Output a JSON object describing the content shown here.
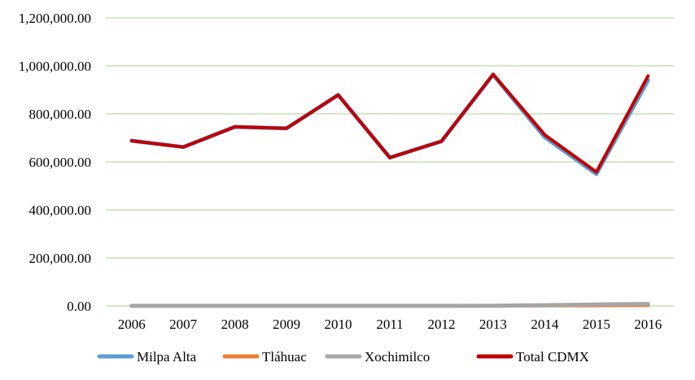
{
  "chart_data": {
    "type": "line",
    "title": "",
    "xlabel": "",
    "ylabel": "",
    "x": [
      "2006",
      "2007",
      "2008",
      "2009",
      "2010",
      "2011",
      "2012",
      "2013",
      "2014",
      "2015",
      "2016"
    ],
    "ylim": [
      0,
      1200000
    ],
    "y_ticks": [
      "0.00",
      "200,000.00",
      "400,000.00",
      "600,000.00",
      "800,000.00",
      "1,000,000.00",
      "1,200,000.00"
    ],
    "y_tick_values": [
      0,
      200000,
      400000,
      600000,
      800000,
      1000000,
      1200000
    ],
    "grid": true,
    "legend_position": "bottom",
    "series": [
      {
        "name": "Milpa Alta",
        "color": "#5B9BD5",
        "values": [
          688000,
          662000,
          746000,
          740000,
          879000,
          618000,
          686000,
          963000,
          703000,
          550000,
          940000
        ]
      },
      {
        "name": "Tláhuac",
        "color": "#ED7D31",
        "values": [
          300,
          300,
          300,
          300,
          300,
          300,
          300,
          300,
          1000,
          1500,
          2000
        ]
      },
      {
        "name": "Xochimilco",
        "color": "#A5A5A5",
        "values": [
          500,
          500,
          500,
          500,
          500,
          500,
          500,
          1000,
          3000,
          6000,
          8000
        ]
      },
      {
        "name": "Total CDMX",
        "color": "#C00000",
        "values": [
          688000,
          662000,
          746000,
          740000,
          879000,
          618000,
          686000,
          965000,
          713000,
          558000,
          958000
        ]
      }
    ]
  }
}
